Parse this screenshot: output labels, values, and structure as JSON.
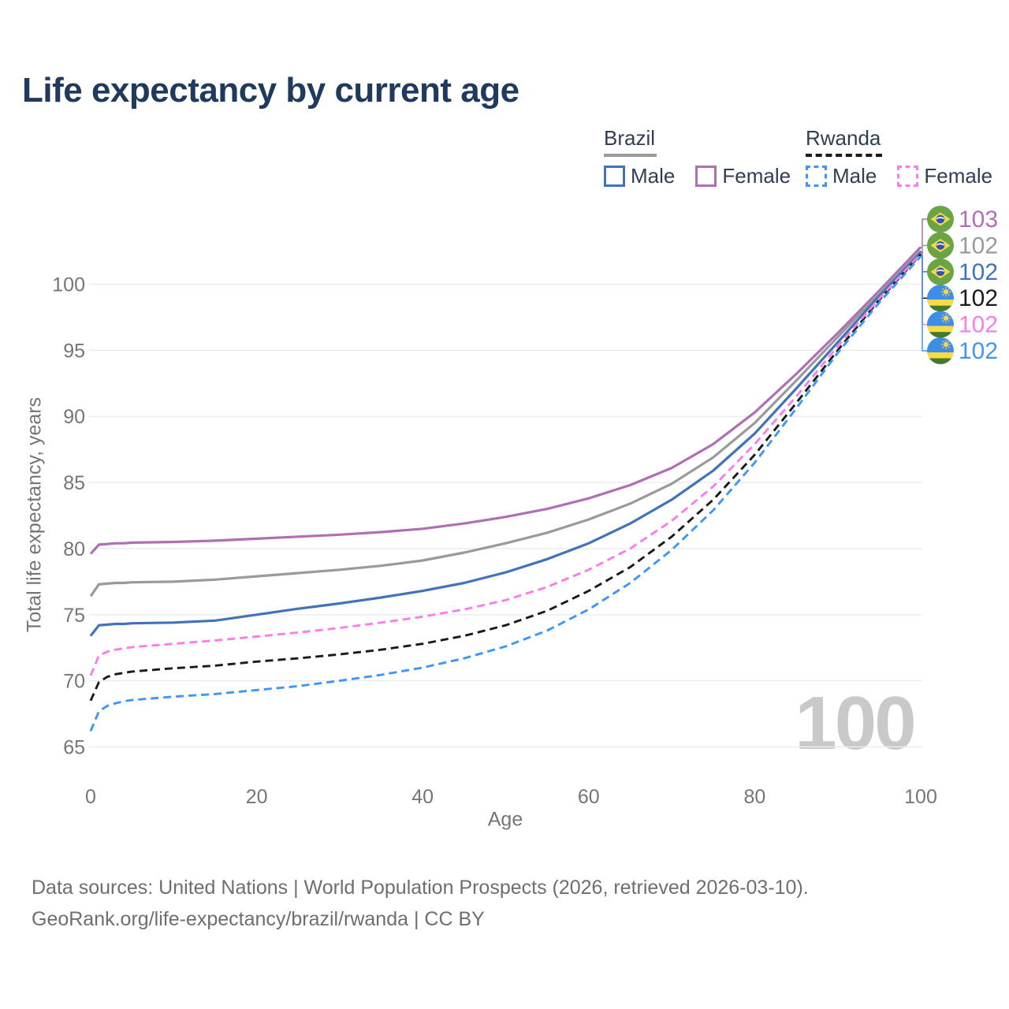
{
  "page": {
    "title": "Life expectancy by current age"
  },
  "legend": {
    "brazil": {
      "title": "Brazil",
      "male": "Male",
      "female": "Female"
    },
    "rwanda": {
      "title": "Rwanda",
      "male": "Male",
      "female": "Female"
    }
  },
  "footer": {
    "line1": "Data sources: United Nations | World Population Prospects (2026, retrieved 2026-03-10).",
    "line2": "GeoRank.org/life-expectancy/brazil/rwanda | CC BY"
  },
  "chart_data": {
    "type": "line",
    "title": "Life expectancy by current age",
    "xlabel": "Age",
    "ylabel": "Total life expectancy, years",
    "xlim": [
      0,
      100
    ],
    "ylim": [
      65,
      100
    ],
    "xticks": [
      0,
      20,
      40,
      60,
      80,
      100
    ],
    "yticks": [
      65,
      70,
      75,
      80,
      85,
      90,
      95,
      100
    ],
    "grid": "horizontal",
    "age_marker": "100",
    "axis_color": "#757575",
    "grid_color": "#ececec",
    "watermark_color": "#c9c9c9",
    "title_color": "#1f3a5c",
    "x": [
      0,
      1,
      2,
      3,
      4,
      5,
      10,
      15,
      20,
      25,
      30,
      35,
      40,
      45,
      50,
      55,
      60,
      65,
      70,
      75,
      80,
      85,
      90,
      95,
      100
    ],
    "series": [
      {
        "id": "brazil-female",
        "name": "Brazil Female",
        "country": "brazil",
        "style": "solid",
        "color": "#b06fb3",
        "end_label": "103",
        "values": [
          79.6,
          80.3,
          80.35,
          80.4,
          80.4,
          80.45,
          80.5,
          80.6,
          80.75,
          80.9,
          81.05,
          81.25,
          81.5,
          81.9,
          82.4,
          83.0,
          83.8,
          84.8,
          86.1,
          87.9,
          90.3,
          93.2,
          96.3,
          99.5,
          102.8
        ]
      },
      {
        "id": "brazil-total",
        "name": "Brazil",
        "country": "brazil",
        "style": "solid",
        "color": "#9a9a9a",
        "end_label": "102",
        "values": [
          76.4,
          77.3,
          77.35,
          77.4,
          77.4,
          77.45,
          77.5,
          77.65,
          77.9,
          78.15,
          78.4,
          78.7,
          79.1,
          79.7,
          80.4,
          81.2,
          82.2,
          83.4,
          84.9,
          86.9,
          89.5,
          92.7,
          96.0,
          99.3,
          102.5
        ]
      },
      {
        "id": "brazil-male",
        "name": "Brazil Male",
        "country": "brazil",
        "style": "solid",
        "color": "#4273b9",
        "end_label": "102",
        "values": [
          73.4,
          74.2,
          74.25,
          74.3,
          74.3,
          74.35,
          74.4,
          74.55,
          75.0,
          75.45,
          75.85,
          76.3,
          76.8,
          77.4,
          78.2,
          79.2,
          80.4,
          81.9,
          83.7,
          85.9,
          88.7,
          92.1,
          95.6,
          99.1,
          102.4
        ]
      },
      {
        "id": "rwanda-total",
        "name": "Rwanda",
        "country": "rwanda",
        "style": "dashed",
        "color": "#1a1a1a",
        "end_label": "102",
        "values": [
          68.5,
          69.9,
          70.3,
          70.5,
          70.6,
          70.7,
          70.95,
          71.15,
          71.45,
          71.7,
          72.0,
          72.35,
          72.8,
          73.4,
          74.2,
          75.3,
          76.8,
          78.6,
          80.9,
          83.7,
          87.1,
          91.0,
          95.0,
          98.8,
          102.25
        ]
      },
      {
        "id": "rwanda-female",
        "name": "Rwanda Female",
        "country": "rwanda",
        "style": "dashed",
        "color": "#fb7de9",
        "end_label": "102",
        "values": [
          70.4,
          71.9,
          72.2,
          72.35,
          72.45,
          72.55,
          72.8,
          73.05,
          73.35,
          73.65,
          74.0,
          74.4,
          74.85,
          75.4,
          76.1,
          77.1,
          78.4,
          80.0,
          82.1,
          84.7,
          87.9,
          91.5,
          95.3,
          98.9,
          102.3
        ]
      },
      {
        "id": "rwanda-male",
        "name": "Rwanda Male",
        "country": "rwanda",
        "style": "dashed",
        "color": "#3f96f6",
        "end_label": "102",
        "values": [
          66.2,
          67.7,
          68.1,
          68.3,
          68.45,
          68.55,
          68.8,
          69.0,
          69.3,
          69.6,
          70.0,
          70.45,
          71.0,
          71.7,
          72.6,
          73.8,
          75.4,
          77.4,
          79.9,
          82.9,
          86.5,
          90.6,
          94.8,
          98.6,
          102.1
        ]
      }
    ]
  }
}
